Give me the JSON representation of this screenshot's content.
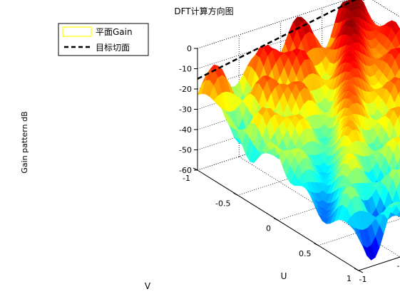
{
  "chart_data": {
    "type": "surface",
    "title": "DFT计算方向图",
    "xlabel": "V",
    "ylabel": "U",
    "zlabel": "Gain pattern  dB",
    "xlim": [
      -1,
      1
    ],
    "ylim": [
      -1,
      1
    ],
    "zlim": [
      -60,
      0
    ],
    "x_ticks": [
      "-1",
      "-0.5",
      "0",
      "0.5",
      "1"
    ],
    "y_ticks": [
      "-1",
      "-0.5",
      "0",
      "0.5",
      "1"
    ],
    "z_ticks": [
      "0",
      "-10",
      "-20",
      "-30",
      "-40",
      "-50",
      "-60"
    ],
    "grid": true,
    "box": true,
    "colormap": "jet",
    "legend_position": "top-left",
    "legend": [
      {
        "label": "平面Gain",
        "style": "patch",
        "color": "#ffff00"
      },
      {
        "label": "目标切面",
        "style": "dashed",
        "color": "#000000"
      }
    ],
    "series": [
      {
        "name": "目标切面",
        "style": "dashed",
        "color": "#000000",
        "points": [
          {
            "v": -1,
            "u": -1,
            "gain_db": -15
          },
          {
            "v": -1,
            "u": 1,
            "gain_db": -0.5
          }
        ]
      }
    ],
    "surface_samples": [
      {
        "v": -1,
        "u": 1,
        "gain_db": -0.5
      },
      {
        "v": -1,
        "u": 0.5,
        "gain_db": -5
      },
      {
        "v": -1,
        "u": 0,
        "gain_db": -9
      },
      {
        "v": -1,
        "u": -0.5,
        "gain_db": -12
      },
      {
        "v": -1,
        "u": -1,
        "gain_db": -15
      },
      {
        "v": -0.5,
        "u": 0.5,
        "gain_db": -10
      },
      {
        "v": -0.2,
        "u": 0.8,
        "gain_db": -5
      },
      {
        "v": 0,
        "u": 0,
        "gain_db": -18
      },
      {
        "v": 0.3,
        "u": -0.3,
        "gain_db": -15
      },
      {
        "v": -0.3,
        "u": -0.5,
        "gain_db": -22
      },
      {
        "v": 0.5,
        "u": 0.5,
        "gain_db": -30
      },
      {
        "v": 0.3,
        "u": 0.2,
        "gain_db": -55
      },
      {
        "v": -0.2,
        "u": -0.5,
        "gain_db": -58
      },
      {
        "v": 0.8,
        "u": 0.2,
        "gain_db": -50
      },
      {
        "v": 1,
        "u": 1,
        "gain_db": -35
      }
    ]
  }
}
